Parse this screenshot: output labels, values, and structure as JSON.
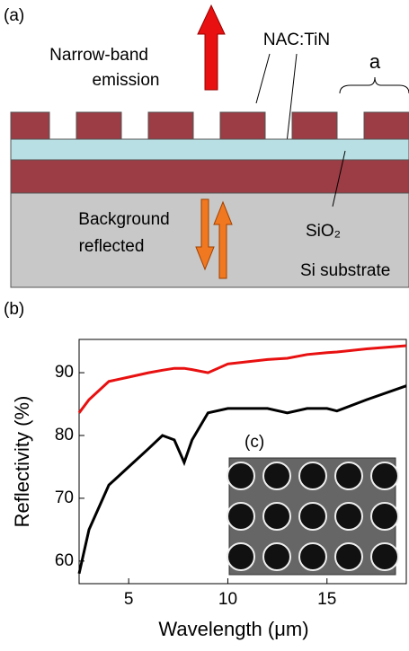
{
  "diagram": {
    "panel_label": "(a)",
    "emission_lines": [
      "Narrow-band",
      "emission"
    ],
    "material_label": "NAC:TiN",
    "period_label": "a",
    "background_lines": [
      "Background",
      "reflected"
    ],
    "oxide_label": "SiO₂",
    "substrate_label": "Si substrate"
  },
  "chart_data": {
    "type": "line",
    "panel_label": "(b)",
    "inset_label": "(c)",
    "xlabel": "Wavelength (μm)",
    "ylabel": "Reflectivity (%)",
    "x": [
      2.5,
      3,
      4,
      5,
      6,
      6.7,
      7.3,
      7.8,
      8.2,
      9,
      10,
      12,
      13,
      14,
      15,
      15.5,
      17,
      19
    ],
    "series": [
      {
        "color": "#e81010",
        "values": [
          83.6,
          85.7,
          88.6,
          89.3,
          90,
          90.4,
          90.7,
          90.7,
          90.5,
          90,
          91.4,
          92.1,
          92.3,
          92.9,
          93.2,
          93.3,
          93.8,
          94.3
        ]
      },
      {
        "color": "#000000",
        "values": [
          58,
          65,
          72.1,
          75,
          77.9,
          80,
          79.3,
          75.7,
          79.3,
          83.6,
          84.3,
          84.3,
          83.6,
          84.3,
          84.3,
          83.9,
          85.7,
          87.9
        ]
      }
    ],
    "xlim": [
      2.5,
      19
    ],
    "xticks": [
      5,
      10,
      15
    ],
    "ylim": [
      56.4,
      95.3
    ],
    "yticks": [
      60,
      70,
      80,
      90
    ]
  }
}
